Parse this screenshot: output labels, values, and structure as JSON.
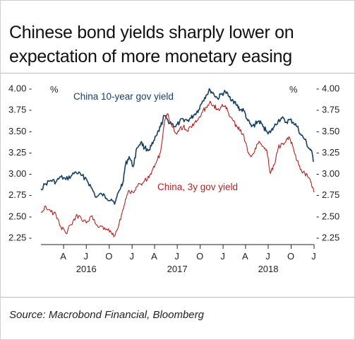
{
  "title": "Chinese bond yields sharply lower on expectation of more monetary easing",
  "source": "Source: Macrobond Financial, Bloomberg",
  "colors": {
    "series_10y": "#173f63",
    "series_3y": "#b22222"
  },
  "chart_data": {
    "type": "line",
    "title": "Chinese bond yields sharply lower on expectation of more monetary easing",
    "left_unit": "%",
    "right_unit": "%",
    "ylim": [
      2.25,
      4.0
    ],
    "yticks": [
      4.0,
      3.75,
      3.5,
      3.25,
      3.0,
      2.75,
      2.5,
      2.25
    ],
    "ytick_labels": [
      "4.00",
      "3.75",
      "3.50",
      "3.25",
      "3.00",
      "2.75",
      "2.50",
      "2.25"
    ],
    "grid": false,
    "xlim": [
      "2016-01-01",
      "2018-12-31"
    ],
    "month_ticks": [
      {
        "date": "2016-04-01",
        "label": "A"
      },
      {
        "date": "2016-07-01",
        "label": "J"
      },
      {
        "date": "2016-10-01",
        "label": "O"
      },
      {
        "date": "2017-01-01",
        "label": "J"
      },
      {
        "date": "2017-04-01",
        "label": "A"
      },
      {
        "date": "2017-07-01",
        "label": "J"
      },
      {
        "date": "2017-10-01",
        "label": "O"
      },
      {
        "date": "2018-01-01",
        "label": "J"
      },
      {
        "date": "2018-04-01",
        "label": "A"
      },
      {
        "date": "2018-07-01",
        "label": "J"
      },
      {
        "date": "2018-10-01",
        "label": "O"
      },
      {
        "date": "2019-01-01",
        "label": "J"
      }
    ],
    "year_ticks": [
      {
        "date": "2016-07-01",
        "label": "2016"
      },
      {
        "date": "2017-07-01",
        "label": "2017"
      },
      {
        "date": "2018-07-01",
        "label": "2018"
      }
    ],
    "series": [
      {
        "name": "China 10-year gov yield",
        "points": [
          [
            "2016-01-01",
            2.82
          ],
          [
            "2016-01-20",
            2.88
          ],
          [
            "2016-02-10",
            2.92
          ],
          [
            "2016-03-01",
            2.9
          ],
          [
            "2016-03-20",
            2.96
          ],
          [
            "2016-04-10",
            2.93
          ],
          [
            "2016-05-01",
            2.97
          ],
          [
            "2016-05-20",
            3.02
          ],
          [
            "2016-06-10",
            2.98
          ],
          [
            "2016-07-01",
            2.94
          ],
          [
            "2016-07-20",
            2.84
          ],
          [
            "2016-08-10",
            2.72
          ],
          [
            "2016-09-01",
            2.76
          ],
          [
            "2016-09-20",
            2.71
          ],
          [
            "2016-10-10",
            2.7
          ],
          [
            "2016-10-25",
            2.66
          ],
          [
            "2016-11-10",
            2.8
          ],
          [
            "2016-11-25",
            2.9
          ],
          [
            "2016-12-05",
            3.1
          ],
          [
            "2016-12-20",
            3.2
          ],
          [
            "2017-01-05",
            3.08
          ],
          [
            "2017-01-20",
            3.3
          ],
          [
            "2017-02-05",
            3.37
          ],
          [
            "2017-02-20",
            3.3
          ],
          [
            "2017-03-10",
            3.28
          ],
          [
            "2017-03-25",
            3.35
          ],
          [
            "2017-04-10",
            3.45
          ],
          [
            "2017-04-25",
            3.55
          ],
          [
            "2017-05-10",
            3.68
          ],
          [
            "2017-05-25",
            3.62
          ],
          [
            "2017-06-10",
            3.58
          ],
          [
            "2017-06-25",
            3.55
          ],
          [
            "2017-07-10",
            3.6
          ],
          [
            "2017-07-25",
            3.64
          ],
          [
            "2017-08-10",
            3.62
          ],
          [
            "2017-08-25",
            3.65
          ],
          [
            "2017-09-10",
            3.7
          ],
          [
            "2017-09-25",
            3.75
          ],
          [
            "2017-10-10",
            3.85
          ],
          [
            "2017-10-25",
            3.92
          ],
          [
            "2017-11-10",
            3.98
          ],
          [
            "2017-11-25",
            3.93
          ],
          [
            "2017-12-10",
            3.88
          ],
          [
            "2017-12-25",
            3.93
          ],
          [
            "2018-01-10",
            3.96
          ],
          [
            "2018-01-25",
            3.9
          ],
          [
            "2018-02-10",
            3.86
          ],
          [
            "2018-02-25",
            3.8
          ],
          [
            "2018-03-10",
            3.75
          ],
          [
            "2018-03-25",
            3.74
          ],
          [
            "2018-04-10",
            3.62
          ],
          [
            "2018-04-25",
            3.55
          ],
          [
            "2018-05-10",
            3.58
          ],
          [
            "2018-05-25",
            3.62
          ],
          [
            "2018-06-10",
            3.55
          ],
          [
            "2018-06-25",
            3.5
          ],
          [
            "2018-07-10",
            3.48
          ],
          [
            "2018-07-25",
            3.55
          ],
          [
            "2018-08-10",
            3.62
          ],
          [
            "2018-08-25",
            3.65
          ],
          [
            "2018-09-10",
            3.6
          ],
          [
            "2018-09-25",
            3.63
          ],
          [
            "2018-10-10",
            3.6
          ],
          [
            "2018-10-25",
            3.55
          ],
          [
            "2018-11-10",
            3.45
          ],
          [
            "2018-11-25",
            3.4
          ],
          [
            "2018-12-10",
            3.3
          ],
          [
            "2018-12-20",
            3.27
          ],
          [
            "2018-12-31",
            3.14
          ]
        ]
      },
      {
        "name": "China, 3y gov yield",
        "points": [
          [
            "2016-01-01",
            2.55
          ],
          [
            "2016-01-20",
            2.62
          ],
          [
            "2016-02-10",
            2.55
          ],
          [
            "2016-03-01",
            2.52
          ],
          [
            "2016-03-20",
            2.38
          ],
          [
            "2016-04-10",
            2.3
          ],
          [
            "2016-05-01",
            2.4
          ],
          [
            "2016-05-20",
            2.5
          ],
          [
            "2016-06-10",
            2.48
          ],
          [
            "2016-07-01",
            2.42
          ],
          [
            "2016-07-20",
            2.5
          ],
          [
            "2016-08-10",
            2.4
          ],
          [
            "2016-09-01",
            2.38
          ],
          [
            "2016-09-20",
            2.35
          ],
          [
            "2016-10-10",
            2.3
          ],
          [
            "2016-10-25",
            2.28
          ],
          [
            "2016-11-10",
            2.42
          ],
          [
            "2016-11-25",
            2.58
          ],
          [
            "2016-12-05",
            2.7
          ],
          [
            "2016-12-20",
            2.8
          ],
          [
            "2017-01-05",
            2.78
          ],
          [
            "2017-01-20",
            2.85
          ],
          [
            "2017-02-05",
            2.88
          ],
          [
            "2017-02-20",
            2.92
          ],
          [
            "2017-03-10",
            2.95
          ],
          [
            "2017-03-25",
            3.05
          ],
          [
            "2017-04-10",
            3.15
          ],
          [
            "2017-04-25",
            3.25
          ],
          [
            "2017-05-10",
            3.6
          ],
          [
            "2017-05-25",
            3.7
          ],
          [
            "2017-06-10",
            3.55
          ],
          [
            "2017-06-25",
            3.48
          ],
          [
            "2017-07-10",
            3.52
          ],
          [
            "2017-07-25",
            3.55
          ],
          [
            "2017-08-10",
            3.5
          ],
          [
            "2017-08-25",
            3.55
          ],
          [
            "2017-09-10",
            3.6
          ],
          [
            "2017-09-25",
            3.65
          ],
          [
            "2017-10-10",
            3.72
          ],
          [
            "2017-10-25",
            3.78
          ],
          [
            "2017-11-10",
            3.85
          ],
          [
            "2017-11-25",
            3.8
          ],
          [
            "2017-12-10",
            3.75
          ],
          [
            "2017-12-25",
            3.78
          ],
          [
            "2018-01-10",
            3.8
          ],
          [
            "2018-01-25",
            3.68
          ],
          [
            "2018-02-10",
            3.62
          ],
          [
            "2018-02-25",
            3.55
          ],
          [
            "2018-03-10",
            3.5
          ],
          [
            "2018-03-25",
            3.45
          ],
          [
            "2018-04-10",
            3.25
          ],
          [
            "2018-04-25",
            3.2
          ],
          [
            "2018-05-10",
            3.3
          ],
          [
            "2018-05-25",
            3.38
          ],
          [
            "2018-06-10",
            3.32
          ],
          [
            "2018-06-25",
            3.28
          ],
          [
            "2018-07-10",
            3.0
          ],
          [
            "2018-07-25",
            3.1
          ],
          [
            "2018-08-10",
            3.3
          ],
          [
            "2018-08-25",
            3.35
          ],
          [
            "2018-09-10",
            3.38
          ],
          [
            "2018-09-25",
            3.42
          ],
          [
            "2018-10-10",
            3.3
          ],
          [
            "2018-10-25",
            3.15
          ],
          [
            "2018-11-10",
            3.05
          ],
          [
            "2018-11-25",
            3.0
          ],
          [
            "2018-12-10",
            2.95
          ],
          [
            "2018-12-20",
            2.9
          ],
          [
            "2018-12-31",
            2.78
          ]
        ]
      }
    ],
    "annotations": [
      {
        "text": "China 10-year gov yield",
        "series": 0
      },
      {
        "text": "China, 3y gov yield",
        "series": 1
      }
    ]
  }
}
